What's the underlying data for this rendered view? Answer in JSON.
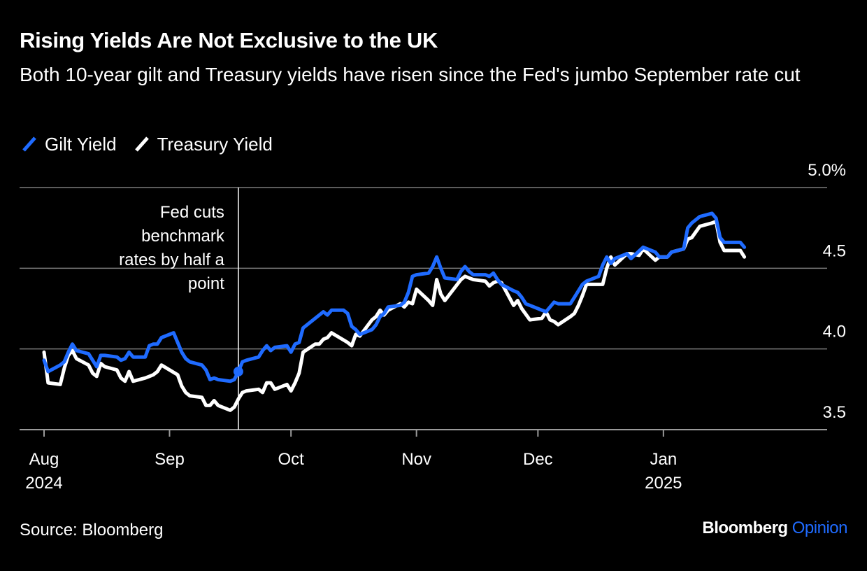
{
  "title": "Rising Yields Are Not Exclusive to the UK",
  "subtitle": "Both 10-year gilt and Treasury yields have risen since the Fed's jumbo September rate cut",
  "source": "Source: Bloomberg",
  "brand": {
    "name": "Bloomberg",
    "suffix": "Opinion"
  },
  "colors": {
    "gilt": "#1f6bff",
    "treasury": "#ffffff",
    "grid": "#7a7a7a",
    "background": "#000000"
  },
  "chart_data": {
    "type": "line",
    "title": "Rising Yields Are Not Exclusive to the UK",
    "subtitle": "Both 10-year gilt and Treasury yields have risen since the Fed's jumbo September rate cut",
    "x_start": "2024-08-01",
    "x_end": "2025-01-24",
    "ylim": [
      3.5,
      5.0
    ],
    "y_ticks": [
      3.5,
      4.0,
      4.5,
      5.0
    ],
    "y_tick_labels": [
      "3.5",
      "4.0",
      "4.5",
      "5.0%"
    ],
    "x_ticks": [
      {
        "date": "2024-08-01",
        "label": "Aug",
        "sublabel": "2024"
      },
      {
        "date": "2024-09-01",
        "label": "Sep",
        "sublabel": ""
      },
      {
        "date": "2024-10-01",
        "label": "Oct",
        "sublabel": ""
      },
      {
        "date": "2024-11-01",
        "label": "Nov",
        "sublabel": ""
      },
      {
        "date": "2024-12-01",
        "label": "Dec",
        "sublabel": ""
      },
      {
        "date": "2025-01-01",
        "label": "Jan",
        "sublabel": "2025"
      }
    ],
    "legend_position": "top-left",
    "grid": true,
    "annotation": {
      "date": "2024-09-18",
      "lines": [
        "Fed cuts",
        "benchmark",
        "rates by half a",
        "point"
      ],
      "marker_value": 3.86
    },
    "series": [
      {
        "name": "Gilt Yield",
        "color": "#1f6bff",
        "points": [
          [
            "2024-08-01",
            3.93
          ],
          [
            "2024-08-02",
            3.86
          ],
          [
            "2024-08-05",
            3.9
          ],
          [
            "2024-08-06",
            3.92
          ],
          [
            "2024-08-07",
            3.98
          ],
          [
            "2024-08-08",
            4.03
          ],
          [
            "2024-08-09",
            3.99
          ],
          [
            "2024-08-12",
            3.97
          ],
          [
            "2024-08-13",
            3.93
          ],
          [
            "2024-08-14",
            3.89
          ],
          [
            "2024-08-15",
            3.96
          ],
          [
            "2024-08-16",
            3.96
          ],
          [
            "2024-08-19",
            3.95
          ],
          [
            "2024-08-20",
            3.93
          ],
          [
            "2024-08-21",
            3.94
          ],
          [
            "2024-08-22",
            3.98
          ],
          [
            "2024-08-23",
            3.95
          ],
          [
            "2024-08-26",
            3.95
          ],
          [
            "2024-08-27",
            4.02
          ],
          [
            "2024-08-28",
            4.03
          ],
          [
            "2024-08-29",
            4.03
          ],
          [
            "2024-08-30",
            4.07
          ],
          [
            "2024-09-02",
            4.1
          ],
          [
            "2024-09-03",
            4.04
          ],
          [
            "2024-09-04",
            3.98
          ],
          [
            "2024-09-05",
            3.94
          ],
          [
            "2024-09-06",
            3.92
          ],
          [
            "2024-09-09",
            3.9
          ],
          [
            "2024-09-10",
            3.87
          ],
          [
            "2024-09-11",
            3.81
          ],
          [
            "2024-09-12",
            3.82
          ],
          [
            "2024-09-13",
            3.81
          ],
          [
            "2024-09-16",
            3.8
          ],
          [
            "2024-09-17",
            3.81
          ],
          [
            "2024-09-18",
            3.86
          ],
          [
            "2024-09-19",
            3.92
          ],
          [
            "2024-09-20",
            3.93
          ],
          [
            "2024-09-23",
            3.95
          ],
          [
            "2024-09-24",
            3.99
          ],
          [
            "2024-09-25",
            4.02
          ],
          [
            "2024-09-26",
            3.99
          ],
          [
            "2024-09-27",
            4.01
          ],
          [
            "2024-09-30",
            4.02
          ],
          [
            "2024-10-01",
            3.98
          ],
          [
            "2024-10-02",
            4.03
          ],
          [
            "2024-10-03",
            4.04
          ],
          [
            "2024-10-04",
            4.13
          ],
          [
            "2024-10-07",
            4.19
          ],
          [
            "2024-10-08",
            4.21
          ],
          [
            "2024-10-09",
            4.23
          ],
          [
            "2024-10-10",
            4.21
          ],
          [
            "2024-10-11",
            4.24
          ],
          [
            "2024-10-14",
            4.24
          ],
          [
            "2024-10-15",
            4.22
          ],
          [
            "2024-10-16",
            4.14
          ],
          [
            "2024-10-17",
            4.12
          ],
          [
            "2024-10-18",
            4.09
          ],
          [
            "2024-10-21",
            4.12
          ],
          [
            "2024-10-22",
            4.15
          ],
          [
            "2024-10-23",
            4.2
          ],
          [
            "2024-10-24",
            4.22
          ],
          [
            "2024-10-25",
            4.26
          ],
          [
            "2024-10-28",
            4.27
          ],
          [
            "2024-10-29",
            4.29
          ],
          [
            "2024-10-30",
            4.35
          ],
          [
            "2024-10-31",
            4.45
          ],
          [
            "2024-11-01",
            4.46
          ],
          [
            "2024-11-04",
            4.47
          ],
          [
            "2024-11-05",
            4.51
          ],
          [
            "2024-11-06",
            4.57
          ],
          [
            "2024-11-07",
            4.5
          ],
          [
            "2024-11-08",
            4.44
          ],
          [
            "2024-11-11",
            4.43
          ],
          [
            "2024-11-12",
            4.48
          ],
          [
            "2024-11-13",
            4.51
          ],
          [
            "2024-11-14",
            4.48
          ],
          [
            "2024-11-15",
            4.46
          ],
          [
            "2024-11-18",
            4.46
          ],
          [
            "2024-11-19",
            4.45
          ],
          [
            "2024-11-20",
            4.47
          ],
          [
            "2024-11-21",
            4.43
          ],
          [
            "2024-11-22",
            4.4
          ],
          [
            "2024-11-25",
            4.36
          ],
          [
            "2024-11-26",
            4.35
          ],
          [
            "2024-11-27",
            4.32
          ],
          [
            "2024-11-28",
            4.28
          ],
          [
            "2024-11-29",
            4.27
          ],
          [
            "2024-12-02",
            4.24
          ],
          [
            "2024-12-03",
            4.23
          ],
          [
            "2024-12-04",
            4.26
          ],
          [
            "2024-12-05",
            4.29
          ],
          [
            "2024-12-06",
            4.28
          ],
          [
            "2024-12-09",
            4.28
          ],
          [
            "2024-12-10",
            4.32
          ],
          [
            "2024-12-11",
            4.36
          ],
          [
            "2024-12-12",
            4.4
          ],
          [
            "2024-12-13",
            4.42
          ],
          [
            "2024-12-16",
            4.45
          ],
          [
            "2024-12-17",
            4.52
          ],
          [
            "2024-12-18",
            4.57
          ],
          [
            "2024-12-19",
            4.53
          ],
          [
            "2024-12-20",
            4.56
          ],
          [
            "2024-12-23",
            4.59
          ],
          [
            "2024-12-24",
            4.56
          ],
          [
            "2024-12-27",
            4.63
          ],
          [
            "2024-12-30",
            4.6
          ],
          [
            "2024-12-31",
            4.57
          ],
          [
            "2025-01-02",
            4.57
          ],
          [
            "2025-01-03",
            4.6
          ],
          [
            "2025-01-06",
            4.62
          ],
          [
            "2025-01-07",
            4.75
          ],
          [
            "2025-01-08",
            4.78
          ],
          [
            "2025-01-09",
            4.8
          ],
          [
            "2025-01-10",
            4.82
          ],
          [
            "2025-01-13",
            4.84
          ],
          [
            "2025-01-14",
            4.81
          ],
          [
            "2025-01-15",
            4.69
          ],
          [
            "2025-01-16",
            4.66
          ],
          [
            "2025-01-17",
            4.66
          ],
          [
            "2025-01-20",
            4.66
          ],
          [
            "2025-01-21",
            4.63
          ]
        ]
      },
      {
        "name": "Treasury Yield",
        "color": "#ffffff",
        "points": [
          [
            "2024-08-01",
            3.98
          ],
          [
            "2024-08-02",
            3.79
          ],
          [
            "2024-08-05",
            3.78
          ],
          [
            "2024-08-06",
            3.88
          ],
          [
            "2024-08-07",
            3.96
          ],
          [
            "2024-08-08",
            3.99
          ],
          [
            "2024-08-09",
            3.94
          ],
          [
            "2024-08-12",
            3.9
          ],
          [
            "2024-08-13",
            3.85
          ],
          [
            "2024-08-14",
            3.83
          ],
          [
            "2024-08-15",
            3.91
          ],
          [
            "2024-08-16",
            3.89
          ],
          [
            "2024-08-19",
            3.87
          ],
          [
            "2024-08-20",
            3.82
          ],
          [
            "2024-08-21",
            3.8
          ],
          [
            "2024-08-22",
            3.86
          ],
          [
            "2024-08-23",
            3.8
          ],
          [
            "2024-08-26",
            3.82
          ],
          [
            "2024-08-27",
            3.83
          ],
          [
            "2024-08-28",
            3.84
          ],
          [
            "2024-08-29",
            3.86
          ],
          [
            "2024-08-30",
            3.9
          ],
          [
            "2024-09-03",
            3.84
          ],
          [
            "2024-09-04",
            3.77
          ],
          [
            "2024-09-05",
            3.73
          ],
          [
            "2024-09-06",
            3.71
          ],
          [
            "2024-09-09",
            3.7
          ],
          [
            "2024-09-10",
            3.65
          ],
          [
            "2024-09-11",
            3.65
          ],
          [
            "2024-09-12",
            3.68
          ],
          [
            "2024-09-13",
            3.65
          ],
          [
            "2024-09-16",
            3.62
          ],
          [
            "2024-09-17",
            3.64
          ],
          [
            "2024-09-18",
            3.69
          ],
          [
            "2024-09-19",
            3.73
          ],
          [
            "2024-09-20",
            3.74
          ],
          [
            "2024-09-23",
            3.75
          ],
          [
            "2024-09-24",
            3.73
          ],
          [
            "2024-09-25",
            3.79
          ],
          [
            "2024-09-26",
            3.79
          ],
          [
            "2024-09-27",
            3.75
          ],
          [
            "2024-09-30",
            3.78
          ],
          [
            "2024-10-01",
            3.74
          ],
          [
            "2024-10-02",
            3.79
          ],
          [
            "2024-10-03",
            3.85
          ],
          [
            "2024-10-04",
            3.98
          ],
          [
            "2024-10-07",
            4.03
          ],
          [
            "2024-10-08",
            4.03
          ],
          [
            "2024-10-09",
            4.06
          ],
          [
            "2024-10-10",
            4.07
          ],
          [
            "2024-10-11",
            4.1
          ],
          [
            "2024-10-15",
            4.04
          ],
          [
            "2024-10-16",
            4.02
          ],
          [
            "2024-10-17",
            4.09
          ],
          [
            "2024-10-18",
            4.08
          ],
          [
            "2024-10-21",
            4.18
          ],
          [
            "2024-10-22",
            4.2
          ],
          [
            "2024-10-23",
            4.24
          ],
          [
            "2024-10-24",
            4.21
          ],
          [
            "2024-10-25",
            4.24
          ],
          [
            "2024-10-28",
            4.28
          ],
          [
            "2024-10-29",
            4.26
          ],
          [
            "2024-10-30",
            4.29
          ],
          [
            "2024-10-31",
            4.28
          ],
          [
            "2024-11-01",
            4.37
          ],
          [
            "2024-11-04",
            4.3
          ],
          [
            "2024-11-05",
            4.27
          ],
          [
            "2024-11-06",
            4.43
          ],
          [
            "2024-11-07",
            4.34
          ],
          [
            "2024-11-08",
            4.3
          ],
          [
            "2024-11-12",
            4.43
          ],
          [
            "2024-11-13",
            4.45
          ],
          [
            "2024-11-14",
            4.44
          ],
          [
            "2024-11-15",
            4.43
          ],
          [
            "2024-11-18",
            4.42
          ],
          [
            "2024-11-19",
            4.39
          ],
          [
            "2024-11-20",
            4.41
          ],
          [
            "2024-11-21",
            4.42
          ],
          [
            "2024-11-22",
            4.41
          ],
          [
            "2024-11-25",
            4.27
          ],
          [
            "2024-11-26",
            4.3
          ],
          [
            "2024-11-27",
            4.25
          ],
          [
            "2024-11-29",
            4.18
          ],
          [
            "2024-12-02",
            4.19
          ],
          [
            "2024-12-03",
            4.23
          ],
          [
            "2024-12-04",
            4.18
          ],
          [
            "2024-12-05",
            4.17
          ],
          [
            "2024-12-06",
            4.15
          ],
          [
            "2024-12-09",
            4.2
          ],
          [
            "2024-12-10",
            4.22
          ],
          [
            "2024-12-11",
            4.27
          ],
          [
            "2024-12-12",
            4.33
          ],
          [
            "2024-12-13",
            4.4
          ],
          [
            "2024-12-16",
            4.4
          ],
          [
            "2024-12-17",
            4.4
          ],
          [
            "2024-12-18",
            4.5
          ],
          [
            "2024-12-19",
            4.57
          ],
          [
            "2024-12-20",
            4.52
          ],
          [
            "2024-12-23",
            4.59
          ],
          [
            "2024-12-24",
            4.59
          ],
          [
            "2024-12-26",
            4.58
          ],
          [
            "2024-12-27",
            4.62
          ],
          [
            "2024-12-30",
            4.55
          ],
          [
            "2024-12-31",
            4.57
          ],
          [
            "2025-01-02",
            4.57
          ],
          [
            "2025-01-03",
            4.6
          ],
          [
            "2025-01-06",
            4.62
          ],
          [
            "2025-01-07",
            4.68
          ],
          [
            "2025-01-08",
            4.69
          ],
          [
            "2025-01-10",
            4.76
          ],
          [
            "2025-01-13",
            4.78
          ],
          [
            "2025-01-14",
            4.79
          ],
          [
            "2025-01-15",
            4.66
          ],
          [
            "2025-01-16",
            4.61
          ],
          [
            "2025-01-17",
            4.61
          ],
          [
            "2025-01-20",
            4.61
          ],
          [
            "2025-01-21",
            4.57
          ]
        ]
      }
    ]
  }
}
